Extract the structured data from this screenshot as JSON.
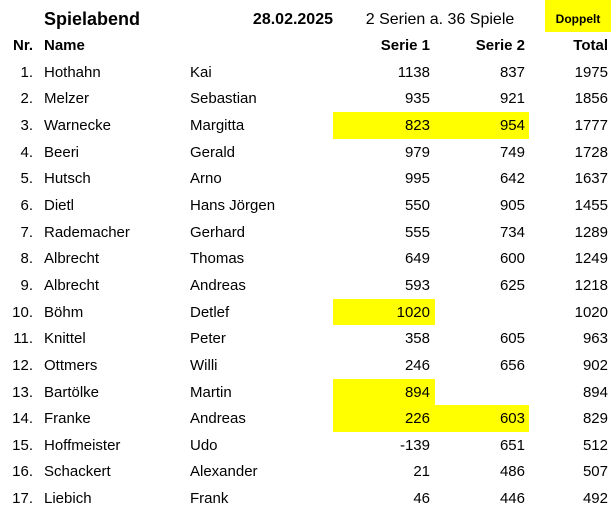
{
  "header": {
    "title": "Spielabend",
    "date": "28.02.2025",
    "series_info": "2 Serien a. 36 Spiele",
    "doppelt_label": "Doppelt"
  },
  "columns": {
    "nr": "Nr.",
    "name": "Name",
    "serie1": "Serie 1",
    "serie2": "Serie 2",
    "total": "Total"
  },
  "colors": {
    "highlight": "#FFFF00",
    "text": "#000000",
    "background": "#FFFFFF"
  },
  "rows": [
    {
      "nr": "1.",
      "last_name": "Hothahn",
      "first_name": "Kai",
      "serie1": "1138",
      "serie2": "837",
      "total": "1975",
      "hl_serie1": false,
      "hl_serie2": false
    },
    {
      "nr": "2.",
      "last_name": "Melzer",
      "first_name": "Sebastian",
      "serie1": "935",
      "serie2": "921",
      "total": "1856",
      "hl_serie1": false,
      "hl_serie2": false
    },
    {
      "nr": "3.",
      "last_name": "Warnecke",
      "first_name": "Margitta",
      "serie1": "823",
      "serie2": "954",
      "total": "1777",
      "hl_serie1": true,
      "hl_serie2": true
    },
    {
      "nr": "4.",
      "last_name": "Beeri",
      "first_name": "Gerald",
      "serie1": "979",
      "serie2": "749",
      "total": "1728",
      "hl_serie1": false,
      "hl_serie2": false
    },
    {
      "nr": "5.",
      "last_name": "Hutsch",
      "first_name": "Arno",
      "serie1": "995",
      "serie2": "642",
      "total": "1637",
      "hl_serie1": false,
      "hl_serie2": false
    },
    {
      "nr": "6.",
      "last_name": "Dietl",
      "first_name": "Hans Jörgen",
      "serie1": "550",
      "serie2": "905",
      "total": "1455",
      "hl_serie1": false,
      "hl_serie2": false
    },
    {
      "nr": "7.",
      "last_name": "Rademacher",
      "first_name": "Gerhard",
      "serie1": "555",
      "serie2": "734",
      "total": "1289",
      "hl_serie1": false,
      "hl_serie2": false
    },
    {
      "nr": "8.",
      "last_name": "Albrecht",
      "first_name": "Thomas",
      "serie1": "649",
      "serie2": "600",
      "total": "1249",
      "hl_serie1": false,
      "hl_serie2": false
    },
    {
      "nr": "9.",
      "last_name": "Albrecht",
      "first_name": "Andreas",
      "serie1": "593",
      "serie2": "625",
      "total": "1218",
      "hl_serie1": false,
      "hl_serie2": false
    },
    {
      "nr": "10.",
      "last_name": "Böhm",
      "first_name": "Detlef",
      "serie1": "1020",
      "serie2": "",
      "total": "1020",
      "hl_serie1": true,
      "hl_serie2": false
    },
    {
      "nr": "11.",
      "last_name": "Knittel",
      "first_name": "Peter",
      "serie1": "358",
      "serie2": "605",
      "total": "963",
      "hl_serie1": false,
      "hl_serie2": false
    },
    {
      "nr": "12.",
      "last_name": "Ottmers",
      "first_name": "Willi",
      "serie1": "246",
      "serie2": "656",
      "total": "902",
      "hl_serie1": false,
      "hl_serie2": false
    },
    {
      "nr": "13.",
      "last_name": "Bartölke",
      "first_name": "Martin",
      "serie1": "894",
      "serie2": "",
      "total": "894",
      "hl_serie1": true,
      "hl_serie2": false
    },
    {
      "nr": "14.",
      "last_name": "Franke",
      "first_name": "Andreas",
      "serie1": "226",
      "serie2": "603",
      "total": "829",
      "hl_serie1": true,
      "hl_serie2": true
    },
    {
      "nr": "15.",
      "last_name": "Hoffmeister",
      "first_name": "Udo",
      "serie1": "-139",
      "serie2": "651",
      "total": "512",
      "hl_serie1": false,
      "hl_serie2": false
    },
    {
      "nr": "16.",
      "last_name": "Schackert",
      "first_name": "Alexander",
      "serie1": "21",
      "serie2": "486",
      "total": "507",
      "hl_serie1": false,
      "hl_serie2": false
    },
    {
      "nr": "17.",
      "last_name": "Liebich",
      "first_name": "Frank",
      "serie1": "46",
      "serie2": "446",
      "total": "492",
      "hl_serie1": false,
      "hl_serie2": false
    }
  ]
}
